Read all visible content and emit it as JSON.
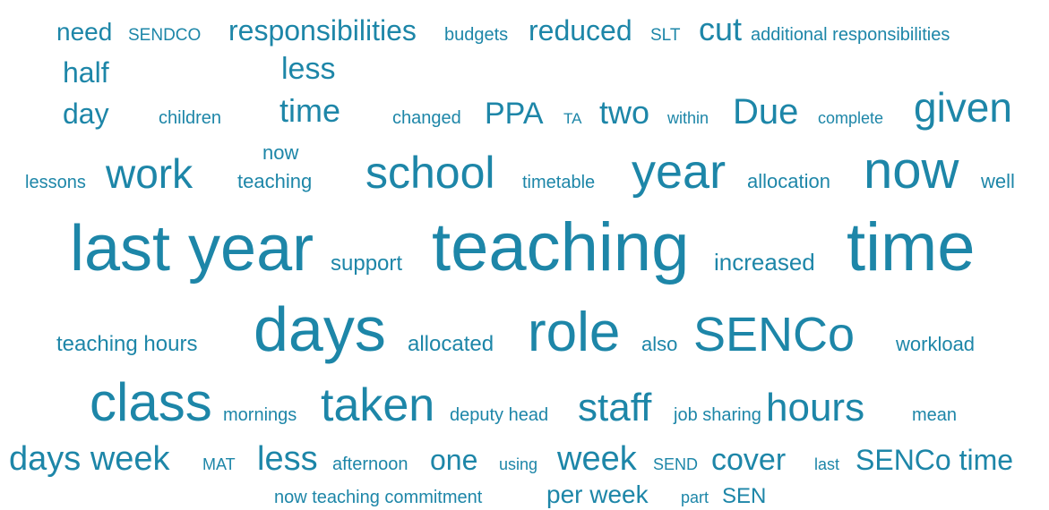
{
  "words": [
    "need",
    "SENDCO",
    "responsibilities",
    "budgets",
    "reduced",
    "SLT",
    "cut",
    "additional responsibilities",
    "half",
    "less",
    "day",
    "children",
    "time",
    "changed",
    "PPA",
    "TA",
    "two",
    "within",
    "Due",
    "complete",
    "given",
    "now",
    "teaching",
    "lessons",
    "work",
    "school",
    "timetable",
    "year",
    "allocation",
    "now",
    "well",
    "last year",
    "support",
    "teaching",
    "increased",
    "time",
    "teaching hours",
    "days",
    "allocated",
    "role",
    "also",
    "SENCo",
    "workload",
    "class",
    "mornings",
    "taken",
    "deputy head",
    "staff",
    "job sharing",
    "hours",
    "mean",
    "days week",
    "MAT",
    "less",
    "afternoon",
    "one",
    "using",
    "week",
    "SEND",
    "cover",
    "last",
    "SENCo time",
    "now teaching commitment",
    "per week",
    "part",
    "SEN"
  ]
}
